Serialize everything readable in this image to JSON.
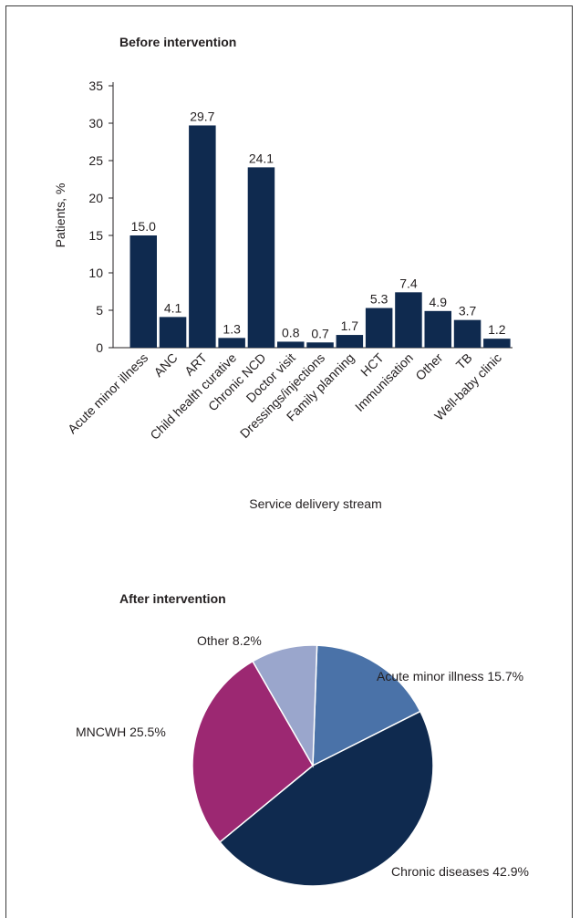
{
  "chart_data": [
    {
      "type": "bar",
      "title": "Before intervention",
      "xlabel": "Service delivery stream",
      "ylabel": "Patients, %",
      "ylim": [
        0,
        35
      ],
      "yticks": [
        0,
        5,
        10,
        15,
        20,
        25,
        30,
        35
      ],
      "categories": [
        "Acute minor illness",
        "ANC",
        "ART",
        "Child health curative",
        "Chronic NCD",
        "Doctor visit",
        "Dressings/injections",
        "Family planning",
        "HCT",
        "Immunisation",
        "Other",
        "TB",
        "Well-baby clinic"
      ],
      "values": [
        15.0,
        4.1,
        29.7,
        1.3,
        24.1,
        0.8,
        0.7,
        1.7,
        5.3,
        7.4,
        4.9,
        3.7,
        1.2
      ],
      "value_labels": [
        "15.0",
        "4.1",
        "29.7",
        "1.3",
        "24.1",
        "0.8",
        "0.7",
        "1.7",
        "5.3",
        "7.4",
        "4.9",
        "3.7",
        "1.2"
      ],
      "bar_color": "#0f2a4f",
      "grid": false
    },
    {
      "type": "pie",
      "title": "After intervention",
      "slices": [
        {
          "label": "Acute minor illness 15.7%",
          "value": 15.7,
          "color": "#4a72a8"
        },
        {
          "label": "Chronic diseases 42.9%",
          "value": 42.9,
          "color": "#0f2a4f"
        },
        {
          "label": "MNCWH 25.5%",
          "value": 25.5,
          "color": "#9c2872"
        },
        {
          "label": "Other 8.2%",
          "value": 8.2,
          "color": "#9aa6cc"
        }
      ]
    }
  ]
}
